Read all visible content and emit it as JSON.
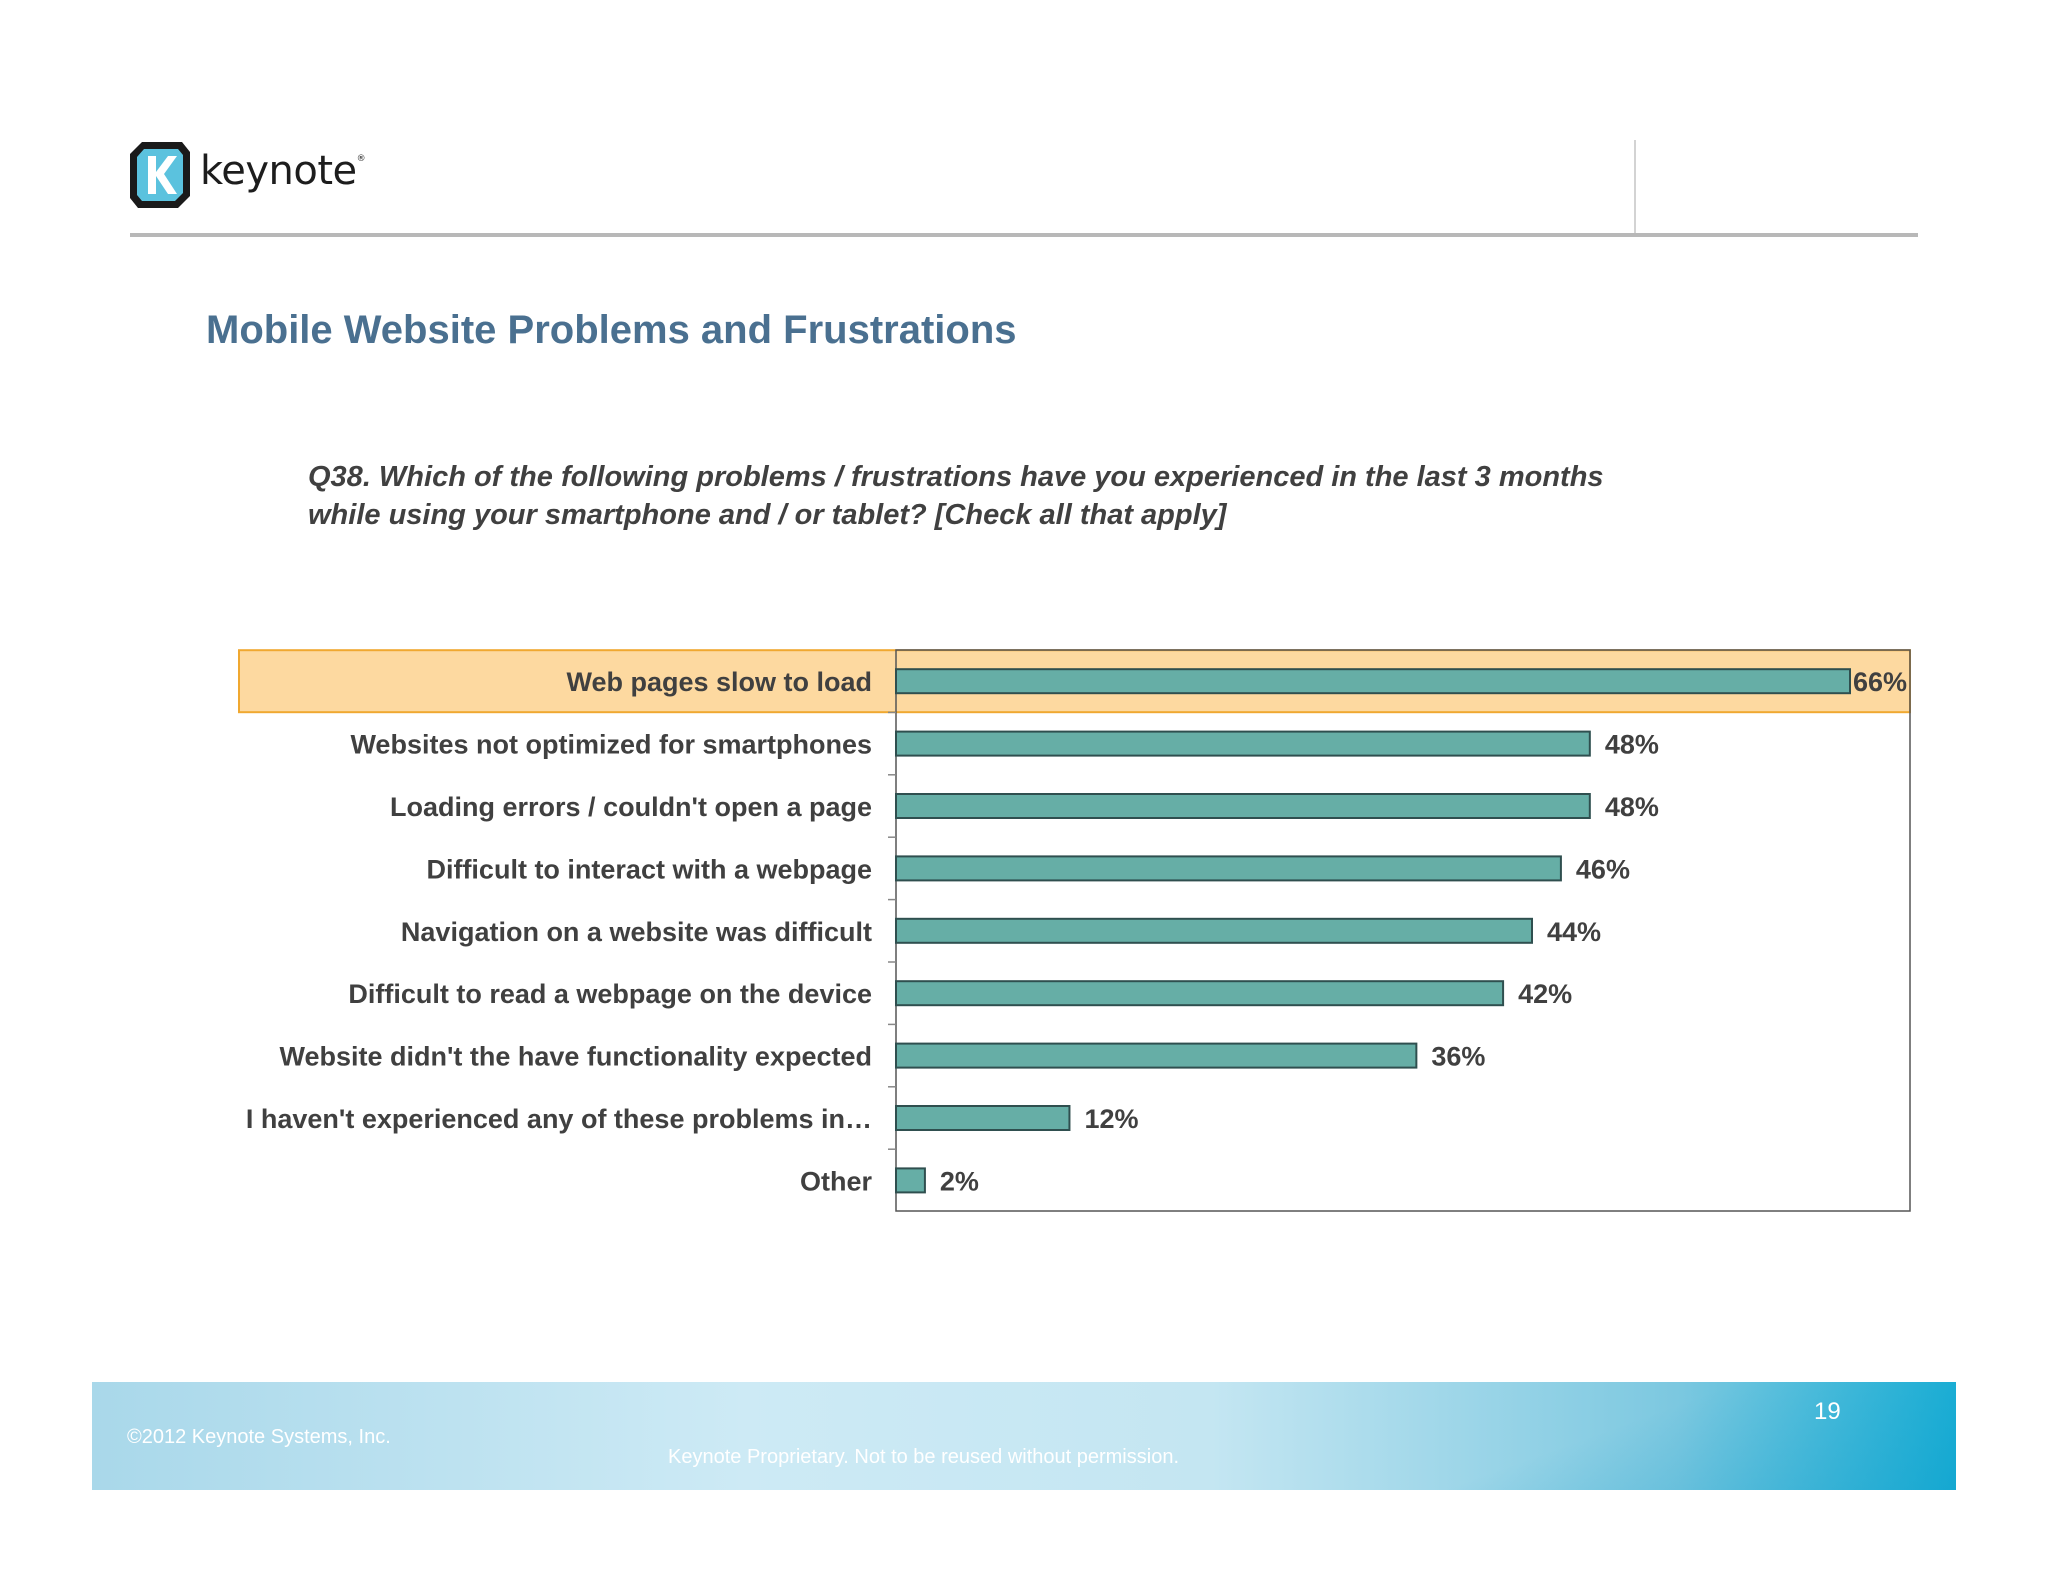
{
  "header": {
    "brand_name": "keynote",
    "brand_mark": "®"
  },
  "slide": {
    "title": "Mobile Website Problems and Frustrations",
    "question_line1": "Q38. Which of the following problems / frustrations have you experienced in the last 3 months",
    "question_line2": "while using your smartphone and / or tablet? [Check all that apply]"
  },
  "chart_data": {
    "type": "bar",
    "orientation": "horizontal",
    "categories": [
      "Web pages slow to load",
      "Websites not optimized for smartphones",
      "Loading errors / couldn't open a page",
      "Difficult to interact with a webpage",
      "Navigation on a website was difficult",
      "Difficult to read a webpage on the device",
      "Website didn't the have functionality expected",
      "I haven't experienced any of these problems in…",
      "Other"
    ],
    "values": [
      66,
      48,
      48,
      46,
      44,
      42,
      36,
      12,
      2
    ],
    "value_labels": [
      "66%",
      "48%",
      "48%",
      "46%",
      "44%",
      "42%",
      "36%",
      "12%",
      "2%"
    ],
    "xlim": [
      0,
      70
    ],
    "highlighted_category": "Web pages slow to load",
    "colors": {
      "bar": "#66aea6",
      "bar_border": "#2f4f4f",
      "highlight": "#fdd9a0",
      "highlight_border": "#f0a830",
      "text": "#404040"
    }
  },
  "footer": {
    "copyright": "©2012 Keynote Systems, Inc.",
    "proprietary": "Keynote Proprietary. Not to be reused without permission.",
    "page_number": "19"
  }
}
